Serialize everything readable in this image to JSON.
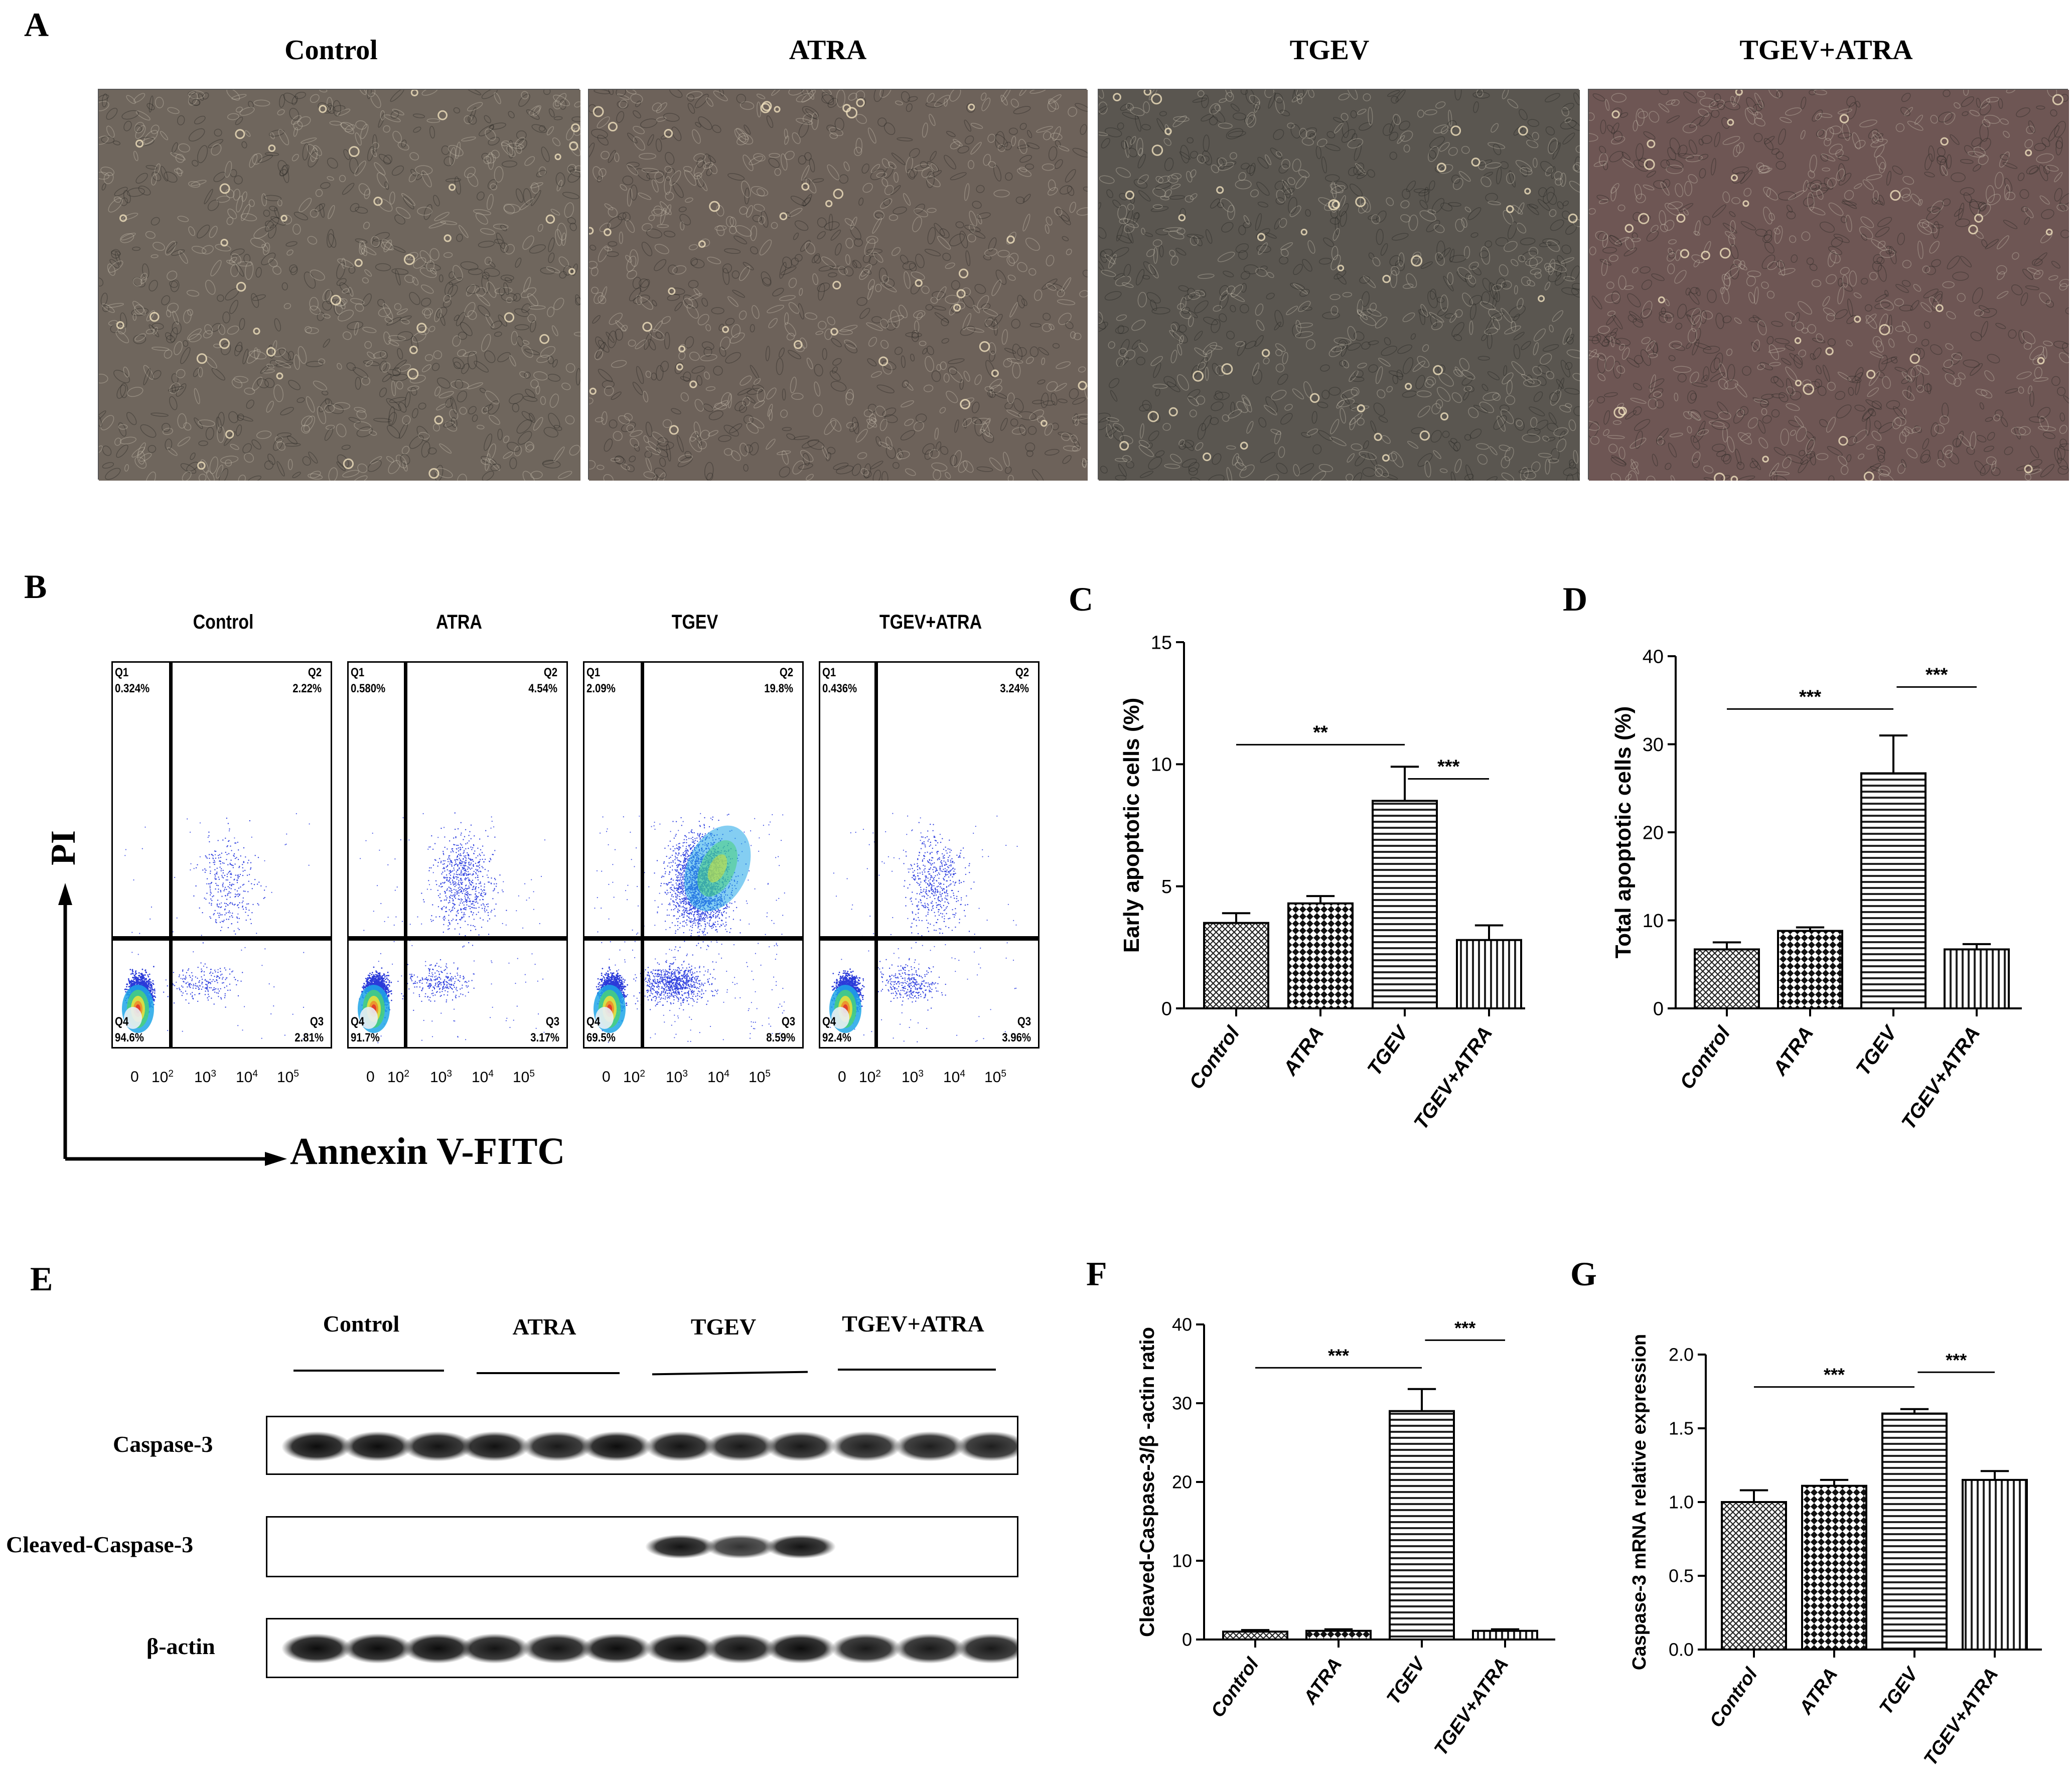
{
  "panels": {
    "A": "A",
    "B": "B",
    "C": "C",
    "D": "D",
    "E": "E",
    "F": "F",
    "G": "G"
  },
  "groups": [
    "Control",
    "ATRA",
    "TGEV",
    "TGEV+ATRA"
  ],
  "micrographs": [
    {
      "name": "Control",
      "tint": "#6f665d"
    },
    {
      "name": "ATRA",
      "tint": "#6d625a"
    },
    {
      "name": "TGEV",
      "tint": "#5a5650"
    },
    {
      "name": "TGEV+ATRA",
      "tint": "#6e5654"
    }
  ],
  "flow": {
    "ylabel": "PI",
    "xlabel": "Annexin V-FITC",
    "x_ticks": [
      "0",
      "10",
      "10",
      "10",
      "10"
    ],
    "x_tick_exp": [
      "",
      "2",
      "3",
      "4",
      "5"
    ],
    "plots": [
      {
        "title": "Control",
        "q1_label": "Q1",
        "q1": "0.324%",
        "q2_label": "Q2",
        "q2": "2.22%",
        "q3_label": "Q3",
        "q3": "2.81%",
        "q4_label": "Q4",
        "q4": "94.6%"
      },
      {
        "title": "ATRA",
        "q1_label": "Q1",
        "q1": "0.580%",
        "q2_label": "Q2",
        "q2": "4.54%",
        "q3_label": "Q3",
        "q3": "3.17%",
        "q4_label": "Q4",
        "q4": "91.7%"
      },
      {
        "title": "TGEV",
        "q1_label": "Q1",
        "q1": "2.09%",
        "q2_label": "Q2",
        "q2": "19.8%",
        "q3_label": "Q3",
        "q3": "8.59%",
        "q4_label": "Q4",
        "q4": "69.5%"
      },
      {
        "title": "TGEV+ATRA",
        "q1_label": "Q1",
        "q1": "0.436%",
        "q2_label": "Q2",
        "q2": "3.24%",
        "q3_label": "Q3",
        "q3": "3.96%",
        "q4_label": "Q4",
        "q4": "92.4%"
      }
    ]
  },
  "western": {
    "groups": [
      "Control",
      "ATRA",
      "TGEV",
      "TGEV+ATRA"
    ],
    "rows": [
      {
        "label": "Caspase-3",
        "intensity": [
          0.95,
          0.95,
          0.92,
          0.93,
          0.9,
          0.95,
          0.92,
          0.9,
          0.9,
          0.88,
          0.88,
          0.88
        ]
      },
      {
        "label": "Cleaved-Caspase-3",
        "intensity": [
          0,
          0,
          0,
          0,
          0,
          0,
          0.92,
          0.8,
          0.92,
          0,
          0,
          0
        ]
      },
      {
        "label": "β-actin",
        "intensity": [
          0.95,
          0.95,
          0.95,
          0.92,
          0.92,
          0.95,
          0.95,
          0.92,
          0.95,
          0.9,
          0.9,
          0.9
        ]
      }
    ]
  },
  "chart_data": [
    {
      "id": "C",
      "type": "bar",
      "categories": [
        "Control",
        "ATRA",
        "TGEV",
        "TGEV+ATRA"
      ],
      "values": [
        3.5,
        4.3,
        8.5,
        2.8
      ],
      "errors": [
        0.4,
        0.3,
        1.4,
        0.6
      ],
      "ylabel": "Early apoptotic cells (%)",
      "ylim": [
        0,
        15
      ],
      "yticks": [
        0,
        5,
        10,
        15
      ],
      "significance": [
        {
          "from": 0,
          "to": 2,
          "label": "**",
          "y": 10.8
        },
        {
          "from": 2,
          "to": 3,
          "label": "***",
          "y": 9.4
        }
      ]
    },
    {
      "id": "D",
      "type": "bar",
      "categories": [
        "Control",
        "ATRA",
        "TGEV",
        "TGEV+ATRA"
      ],
      "values": [
        6.7,
        8.8,
        26.7,
        6.7
      ],
      "errors": [
        0.8,
        0.4,
        4.3,
        0.6
      ],
      "ylabel": "Total apoptotic cells (%)",
      "ylim": [
        0,
        40
      ],
      "yticks": [
        0,
        10,
        20,
        30,
        40
      ],
      "significance": [
        {
          "from": 0,
          "to": 2,
          "label": "***",
          "y": 34
        },
        {
          "from": 2,
          "to": 3,
          "label": "***",
          "y": 36.5
        }
      ]
    },
    {
      "id": "F",
      "type": "bar",
      "categories": [
        "Control",
        "ATRA",
        "TGEV",
        "TGEV+ATRA"
      ],
      "values": [
        1.0,
        1.1,
        29.0,
        1.1
      ],
      "errors": [
        0.2,
        0.2,
        2.8,
        0.2
      ],
      "ylabel": "Cleaved-Caspase-3/β -actin ratio",
      "ylim": [
        0,
        40
      ],
      "yticks": [
        0,
        10,
        20,
        30,
        40
      ],
      "significance": [
        {
          "from": 0,
          "to": 2,
          "label": "***",
          "y": 34.5
        },
        {
          "from": 2,
          "to": 3,
          "label": "***",
          "y": 38
        }
      ]
    },
    {
      "id": "G",
      "type": "bar",
      "categories": [
        "Control",
        "ATRA",
        "TGEV",
        "TGEV+ATRA"
      ],
      "values": [
        1.0,
        1.11,
        1.6,
        1.15
      ],
      "errors": [
        0.08,
        0.04,
        0.03,
        0.06
      ],
      "ylabel": "Caspase-3 mRNA relative expression",
      "ylim": [
        0,
        2.0
      ],
      "yticks": [
        "0.0",
        "0.5",
        "1.0",
        "1.5",
        "2.0"
      ],
      "significance": [
        {
          "from": 0,
          "to": 2,
          "label": "***",
          "y": 1.78
        },
        {
          "from": 2,
          "to": 3,
          "label": "***",
          "y": 1.88
        }
      ]
    }
  ]
}
